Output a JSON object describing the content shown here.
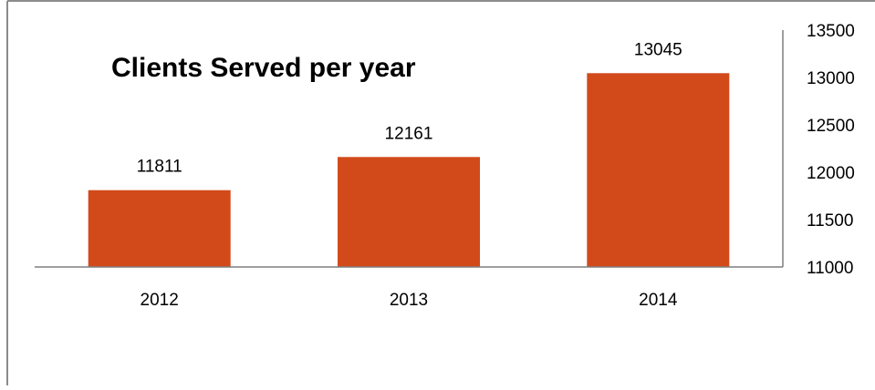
{
  "chart_data": {
    "type": "bar",
    "title": "Clients Served per year",
    "categories": [
      "2012",
      "2013",
      "2014"
    ],
    "values": [
      11811,
      12161,
      13045
    ],
    "data_labels": [
      "11811",
      "12161",
      "13045"
    ],
    "ylim": [
      11000,
      13500
    ],
    "yticks": [
      11000,
      11500,
      12000,
      12500,
      13000,
      13500
    ],
    "ytick_labels": [
      "11000",
      "11500",
      "12000",
      "12500",
      "13000",
      "13500"
    ],
    "y_axis_side": "right",
    "grid": false,
    "legend": "none",
    "bar_color": "#D24A1A",
    "axis_color": "#7F7F7F"
  }
}
